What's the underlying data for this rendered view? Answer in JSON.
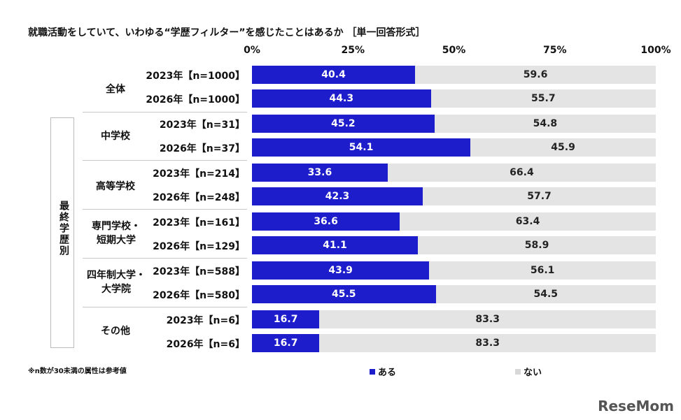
{
  "chart_data": {
    "type": "bar",
    "stacked": true,
    "orientation": "horizontal",
    "title": "就職活動をしていて、いわゆる“学歴フィルター”を感じたことはあるか ［単一回答形式］",
    "xticks": [
      "0%",
      "25%",
      "50%",
      "75%",
      "100%"
    ],
    "xlim": [
      0,
      100
    ],
    "categories": [
      "2023年【n=1000】",
      "2026年【n=1000】",
      "2023年【n=31】",
      "2026年【n=37】",
      "2023年【n=214】",
      "2026年【n=248】",
      "2023年【n=161】",
      "2026年【n=129】",
      "2023年【n=588】",
      "2026年【n=580】",
      "2023年【n=6】",
      "2026年【n=6】"
    ],
    "groups": [
      "全体",
      "中学校",
      "高等学校",
      "専門学校・\n短期大学",
      "四年制大学・\n大学院",
      "その他"
    ],
    "group_axis_label": "最終学歴別",
    "series": [
      {
        "name": "ある",
        "color": "#1d1dcc",
        "values": [
          40.4,
          44.3,
          45.2,
          54.1,
          33.6,
          42.3,
          36.6,
          41.1,
          43.9,
          45.5,
          16.7,
          16.7
        ],
        "labels": [
          "40.4",
          "44.3",
          "45.2",
          "54.1",
          "33.6",
          "42.3",
          "36.6",
          "41.1",
          "43.9",
          "45.5",
          "16.7",
          "16.7"
        ]
      },
      {
        "name": "ない",
        "color": "#e4e4e4",
        "values": [
          59.6,
          55.7,
          54.8,
          45.9,
          66.4,
          57.7,
          63.4,
          58.9,
          56.1,
          54.5,
          83.3,
          83.3
        ],
        "labels": [
          "59.6",
          "55.7",
          "54.8",
          "45.9",
          "66.4",
          "57.7",
          "63.4",
          "58.9",
          "56.1",
          "54.5",
          "83.3",
          "83.3"
        ]
      }
    ],
    "legend_position": "bottom",
    "note": "※n数が30未満の属性は参考値"
  },
  "logo_text": "ReseMom"
}
